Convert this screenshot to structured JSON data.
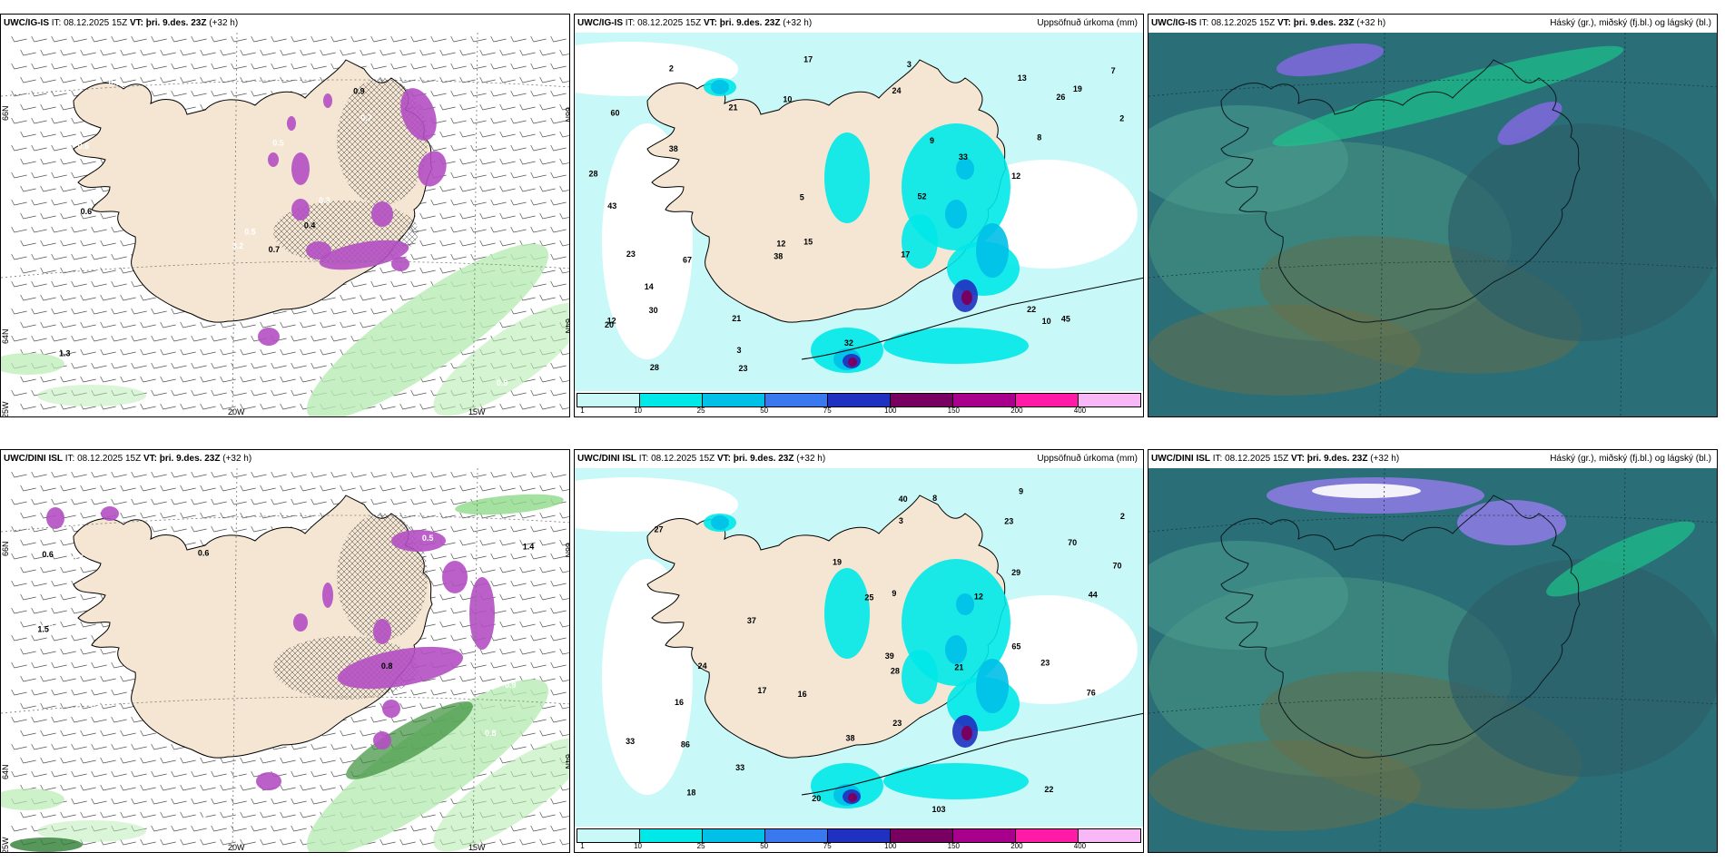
{
  "rows": [
    {
      "model": "UWC/IG-IS",
      "it_label": "IT:",
      "it_value": "08.12.2025 15Z",
      "vt_label": "VT:",
      "vt_value": "þri. 9.des. 23Z",
      "lead": "(+32 h)",
      "precip_title": "Uppsöfnuð úrkoma (mm)",
      "cloud_title": "Háský (gr.), miðský (fj.bl.) og lágský (bl.)",
      "lat_labels": [
        "66N",
        "64N",
        "25W"
      ],
      "lon_labels": [
        "20W",
        "15W"
      ],
      "lat_right": [
        "66N",
        "64N"
      ],
      "ptype_values": [
        "0.7",
        "0.6",
        "0.5",
        "1.3",
        "0.3",
        "0.8",
        "0.9",
        "0.5",
        "0.7",
        "0.4",
        "0.6",
        "0.9",
        "0.6",
        "0.6",
        "3.2"
      ],
      "precip_values": [
        "24",
        "3",
        "2",
        "10",
        "3",
        "60",
        "2",
        "5",
        "9",
        "21",
        "23",
        "30",
        "20",
        "21",
        "13",
        "12",
        "33",
        "43",
        "26",
        "45",
        "38",
        "52",
        "67",
        "32",
        "38",
        "19",
        "12",
        "17",
        "15",
        "14",
        "28",
        "28",
        "23",
        "22",
        "12",
        "17",
        "10",
        "8",
        "7"
      ]
    },
    {
      "model": "UWC/DINI ISL",
      "it_label": "IT:",
      "it_value": "08.12.2025 15Z",
      "vt_label": "VT:",
      "vt_value": "þri. 9.des. 23Z",
      "lead": "(+32 h)",
      "precip_title": "Uppsöfnuð úrkoma (mm)",
      "cloud_title": "Háský (gr.), miðský (fj.bl.) og lágský (bl.)",
      "lat_labels": [
        "66N",
        "64N",
        "25W"
      ],
      "lon_labels": [
        "20W",
        "15W"
      ],
      "lat_right": [
        "66N",
        "64N"
      ],
      "ptype_values": [
        "0.6",
        "0.8",
        "0.6",
        "0.8",
        "0.8",
        "0.6",
        "1.5",
        "0.5",
        "0.9",
        "0.6",
        "0.5",
        "1.1",
        "1.4"
      ],
      "precip_values": [
        "33",
        "40",
        "2",
        "9",
        "70",
        "17",
        "25",
        "38",
        "22",
        "19",
        "20",
        "44",
        "12",
        "27",
        "70",
        "103",
        "76",
        "33",
        "39",
        "86",
        "65",
        "29",
        "18",
        "16",
        "21",
        "37",
        "24",
        "23",
        "23",
        "28",
        "23",
        "16",
        "9",
        "8",
        "3"
      ]
    }
  ],
  "legend": {
    "ticks": [
      "1",
      "10",
      "25",
      "50",
      "75",
      "100",
      "150",
      "200",
      "400"
    ],
    "colors": [
      "#c8f8f8",
      "#00e8e8",
      "#00c0e8",
      "#3a78f0",
      "#2030c0",
      "#780060",
      "#a8008c",
      "#ff1aa8",
      "#f7b8f5"
    ]
  },
  "colors": {
    "land": "#f5e6d3",
    "ptype_snow": "#b44fc3",
    "ptype_rain": "#b8ecb4",
    "precip_bg": "#c8f8f8",
    "cloud_bg": "#2a6e78"
  }
}
